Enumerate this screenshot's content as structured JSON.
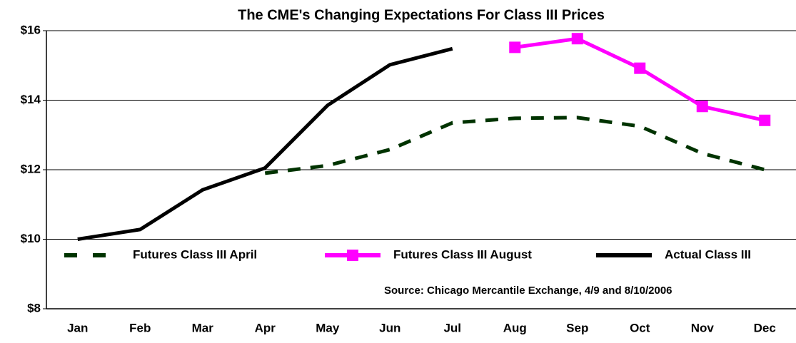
{
  "chart_data": {
    "type": "line",
    "title": "The CME's Changing Expectations For Class III Prices",
    "annotation": "Source: Chicago Mercantile Exchange, 4/9 and 8/10/2006",
    "categories": [
      "Jan",
      "Feb",
      "Mar",
      "Apr",
      "May",
      "Jun",
      "Jul",
      "Aug",
      "Sep",
      "Oct",
      "Nov",
      "Dec"
    ],
    "series": [
      {
        "name": "Futures Class III April",
        "color": "#003300",
        "dash": true,
        "marker": false,
        "values": [
          null,
          null,
          null,
          11.9,
          12.12,
          12.58,
          13.35,
          13.48,
          13.5,
          13.25,
          12.47,
          12.0
        ]
      },
      {
        "name": "Futures Class III August",
        "color": "#ff00ff",
        "dash": false,
        "marker": true,
        "values": [
          null,
          null,
          null,
          null,
          null,
          null,
          null,
          15.52,
          15.77,
          14.92,
          13.82,
          13.42
        ]
      },
      {
        "name": "Actual Class III",
        "color": "#000000",
        "dash": false,
        "marker": false,
        "values": [
          10.0,
          10.28,
          11.42,
          12.05,
          13.85,
          15.02,
          15.48,
          null,
          null,
          null,
          null,
          null
        ]
      }
    ],
    "ylim": [
      8,
      16
    ],
    "yticks": [
      {
        "value": 8,
        "label": "$8"
      },
      {
        "value": 10,
        "label": "$10"
      },
      {
        "value": 12,
        "label": "$12"
      },
      {
        "value": 14,
        "label": "$14"
      },
      {
        "value": 16,
        "label": "$16"
      }
    ],
    "grid": true
  }
}
